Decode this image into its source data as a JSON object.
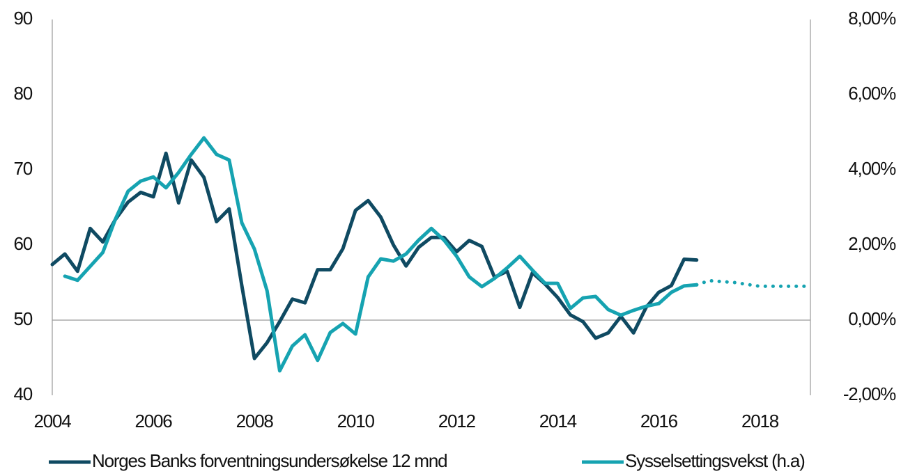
{
  "chart_data": {
    "type": "line",
    "xlim": [
      2004,
      2019
    ],
    "xticks": [
      2004,
      2006,
      2008,
      2010,
      2012,
      2014,
      2016,
      2018
    ],
    "ylim": [
      40,
      90
    ],
    "yticks": [
      40,
      50,
      60,
      70,
      80,
      90
    ],
    "y2lim": [
      -2,
      8
    ],
    "y2ticks": [
      {
        "value": -2,
        "label": "-2,00%"
      },
      {
        "value": 0,
        "label": "0,00%"
      },
      {
        "value": 2,
        "label": "2,00%"
      },
      {
        "value": 4,
        "label": "4,00%"
      },
      {
        "value": 6,
        "label": "6,00%"
      },
      {
        "value": 8,
        "label": "8,00%"
      }
    ],
    "legend": "bottom",
    "series": [
      {
        "name": "Norges Banks forventningsundersøkelse 12 mnd",
        "color": "#0f4a62",
        "x": [
          2004,
          2004.25,
          2004.5,
          2004.75,
          2005,
          2005.25,
          2005.5,
          2005.75,
          2006,
          2006.25,
          2006.5,
          2006.75,
          2007,
          2007.25,
          2007.5,
          2007.75,
          2008,
          2008.25,
          2008.5,
          2008.75,
          2009,
          2009.25,
          2009.5,
          2009.75,
          2010,
          2010.25,
          2010.5,
          2010.75,
          2011,
          2011.25,
          2011.5,
          2011.75,
          2012,
          2012.25,
          2012.5,
          2012.75,
          2013,
          2013.25,
          2013.5,
          2013.75,
          2014,
          2014.25,
          2014.5,
          2014.75,
          2015,
          2015.25,
          2015.5,
          2015.75,
          2016,
          2016.25,
          2016.5,
          2016.75
        ],
        "values": [
          57.4,
          58.8,
          56.5,
          62.2,
          60.4,
          63.4,
          65.7,
          67.0,
          66.4,
          72.2,
          65.6,
          71.3,
          69.0,
          63.1,
          64.8,
          54.6,
          44.9,
          47.0,
          49.8,
          52.8,
          52.3,
          56.7,
          56.7,
          59.5,
          64.6,
          65.9,
          63.7,
          60.0,
          57.2,
          59.7,
          61.0,
          61.0,
          59.1,
          60.6,
          59.8,
          55.7,
          56.5,
          51.7,
          56.3,
          54.8,
          53.0,
          50.7,
          49.8,
          47.6,
          48.3,
          50.5,
          48.3,
          51.7,
          53.7,
          54.6,
          58.1,
          58.0
        ]
      },
      {
        "name": "Sysselsettingsvekst (h.a)",
        "color": "#16a3b1",
        "axis": "y2",
        "x": [
          2004.25,
          2004.5,
          2004.75,
          2005,
          2005.25,
          2005.5,
          2005.75,
          2006,
          2006.25,
          2006.5,
          2006.75,
          2007,
          2007.25,
          2007.5,
          2007.75,
          2008,
          2008.25,
          2008.5,
          2008.75,
          2009,
          2009.25,
          2009.5,
          2009.75,
          2010,
          2010.25,
          2010.5,
          2010.75,
          2011,
          2011.25,
          2011.5,
          2011.75,
          2012,
          2012.25,
          2012.5,
          2012.75,
          2013,
          2013.25,
          2013.5,
          2013.75,
          2014,
          2014.25,
          2014.5,
          2014.75,
          2015,
          2015.25,
          2015.5,
          2015.75,
          2016,
          2016.25,
          2016.5,
          2016.75
        ],
        "values": [
          1.17,
          1.06,
          1.43,
          1.8,
          2.69,
          3.43,
          3.7,
          3.81,
          3.52,
          3.93,
          4.41,
          4.85,
          4.41,
          4.26,
          2.59,
          1.89,
          0.78,
          -1.35,
          -0.69,
          -0.39,
          -1.07,
          -0.33,
          -0.09,
          -0.37,
          1.15,
          1.63,
          1.57,
          1.76,
          2.13,
          2.44,
          2.13,
          1.7,
          1.15,
          0.89,
          1.11,
          1.39,
          1.7,
          1.33,
          0.98,
          0.98,
          0.31,
          0.59,
          0.63,
          0.28,
          0.13,
          0.26,
          0.37,
          0.44,
          0.74,
          0.91,
          0.94
        ]
      },
      {
        "color": "#16a3b1",
        "axis": "y2",
        "dash": "dotted",
        "x": [
          2016.75,
          2017,
          2017.5,
          2018,
          2018.5,
          2019
        ],
        "values": [
          0.94,
          1.05,
          1.0,
          0.9,
          0.9,
          0.9
        ]
      }
    ]
  }
}
